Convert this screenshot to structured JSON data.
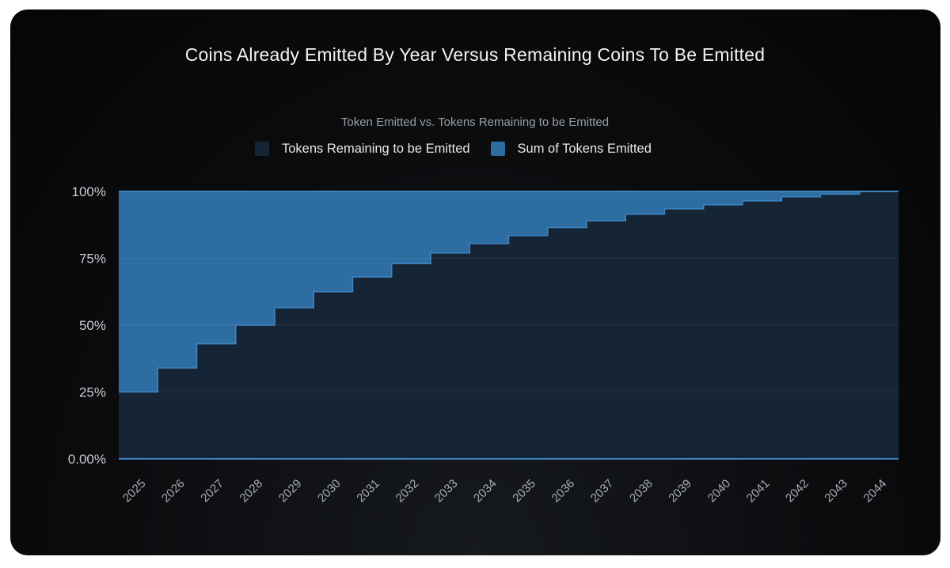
{
  "chart_data": {
    "type": "area",
    "title": "Coins Already Emitted By Year Versus Remaining Coins To Be Emitted",
    "subtitle": "Token Emitted vs. Tokens Remaining to be Emitted",
    "categories": [
      "2025",
      "2026",
      "2027",
      "2028",
      "2029",
      "2030",
      "2031",
      "2032",
      "2033",
      "2034",
      "2035",
      "2036",
      "2037",
      "2038",
      "2039",
      "2040",
      "2041",
      "2042",
      "2043",
      "2044"
    ],
    "series": [
      {
        "name": "Tokens Remaining to be Emitted",
        "color": "#152536",
        "values": [
          25,
          34,
          43,
          50,
          56.5,
          62.5,
          68,
          73,
          77,
          80.5,
          83.5,
          86.5,
          89,
          91.5,
          93.5,
          95,
          96.5,
          98,
          99,
          100
        ]
      },
      {
        "name": "Sum of Tokens Emitted",
        "color": "#2e6da2",
        "values": [
          75,
          66,
          57,
          50,
          43.5,
          37.5,
          32,
          27,
          23,
          19.5,
          16.5,
          13.5,
          11,
          8.5,
          6.5,
          5,
          3.5,
          2,
          1,
          0
        ]
      }
    ],
    "stacked": true,
    "step": true,
    "ylim": [
      0,
      100
    ],
    "yticks": [
      "0.00%",
      "25%",
      "50%",
      "75%",
      "100%"
    ],
    "ytick_values": [
      0,
      25,
      50,
      75,
      100
    ],
    "grid": true,
    "legend_position": "top-center"
  }
}
